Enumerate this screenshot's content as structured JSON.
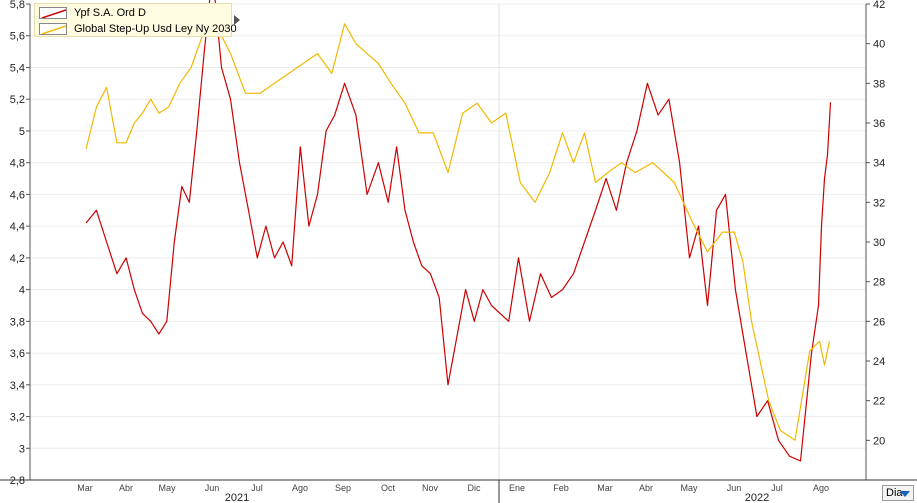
{
  "chart_data": {
    "type": "line",
    "x_ticks": [
      "Mar",
      "Abr",
      "May",
      "Jun",
      "Jul",
      "Ago",
      "Sep",
      "Oct",
      "Nov",
      "Dic",
      "Ene",
      "Feb",
      "Mar",
      "Abr",
      "May",
      "Jun",
      "Jul",
      "Ago"
    ],
    "year_labels": [
      "2021",
      "2022"
    ],
    "ylim_left": [
      2.8,
      5.8
    ],
    "yticks_left": [
      "2,8",
      "3",
      "3,2",
      "3,4",
      "3,6",
      "3,8",
      "4",
      "4,2",
      "4,4",
      "4,6",
      "4,8",
      "5",
      "5,2",
      "5,4",
      "5,6",
      "5,8"
    ],
    "ylim_right": [
      18,
      42
    ],
    "yticks_right": [
      "20",
      "22",
      "24",
      "26",
      "28",
      "30",
      "32",
      "34",
      "36",
      "38",
      "40",
      "42"
    ],
    "grid": true,
    "legend_position": "top-left",
    "series": [
      {
        "name": "Ypf S.A. Ord D",
        "axis": "left",
        "color": "#cc0000",
        "points": [
          [
            "Mar",
            4.42
          ],
          [
            "Mar",
            4.5
          ],
          [
            "Mar",
            4.3
          ],
          [
            "Mar",
            4.1
          ],
          [
            "Abr",
            4.2
          ],
          [
            "Abr",
            4.0
          ],
          [
            "Abr",
            3.85
          ],
          [
            "Abr",
            3.8
          ],
          [
            "Abr",
            3.72
          ],
          [
            "May",
            3.8
          ],
          [
            "May",
            4.3
          ],
          [
            "May",
            4.65
          ],
          [
            "May",
            4.55
          ],
          [
            "May",
            5.0
          ],
          [
            "May",
            5.5
          ],
          [
            "Jun",
            6.0
          ],
          [
            "Jun",
            5.4
          ],
          [
            "Jun",
            5.2
          ],
          [
            "Jun",
            4.8
          ],
          [
            "Jun",
            4.5
          ],
          [
            "Jul",
            4.2
          ],
          [
            "Jul",
            4.4
          ],
          [
            "Jul",
            4.2
          ],
          [
            "Jul",
            4.3
          ],
          [
            "Jul",
            4.15
          ],
          [
            "Ago",
            4.9
          ],
          [
            "Ago",
            4.4
          ],
          [
            "Ago",
            4.6
          ],
          [
            "Ago",
            5.0
          ],
          [
            "Ago",
            5.1
          ],
          [
            "Sep",
            5.3
          ],
          [
            "Sep",
            5.1
          ],
          [
            "Sep",
            4.6
          ],
          [
            "Sep",
            4.8
          ],
          [
            "Oct",
            4.55
          ],
          [
            "Oct",
            4.9
          ],
          [
            "Oct",
            4.5
          ],
          [
            "Oct",
            4.3
          ],
          [
            "Oct",
            4.15
          ],
          [
            "Nov",
            4.1
          ],
          [
            "Nov",
            3.95
          ],
          [
            "Nov",
            3.4
          ],
          [
            "Nov",
            3.7
          ],
          [
            "Nov",
            4.0
          ],
          [
            "Dic",
            3.8
          ],
          [
            "Dic",
            4.0
          ],
          [
            "Dic",
            3.9
          ],
          [
            "Dic",
            3.85
          ],
          [
            "Dic",
            3.8
          ],
          [
            "Ene",
            4.2
          ],
          [
            "Ene",
            3.8
          ],
          [
            "Ene",
            4.1
          ],
          [
            "Ene",
            3.95
          ],
          [
            "Feb",
            4.0
          ],
          [
            "Feb",
            4.1
          ],
          [
            "Feb",
            4.3
          ],
          [
            "Feb",
            4.5
          ],
          [
            "Mar",
            4.7
          ],
          [
            "Mar",
            4.5
          ],
          [
            "Mar",
            4.8
          ],
          [
            "Mar",
            5.0
          ],
          [
            "Abr",
            5.3
          ],
          [
            "Abr",
            5.1
          ],
          [
            "Abr",
            5.2
          ],
          [
            "Abr",
            4.8
          ],
          [
            "May",
            4.2
          ],
          [
            "May",
            4.4
          ],
          [
            "May",
            3.9
          ],
          [
            "May",
            4.5
          ],
          [
            "May",
            4.6
          ],
          [
            "Jun",
            4.0
          ],
          [
            "Jun",
            3.6
          ],
          [
            "Jun",
            3.2
          ],
          [
            "Jun",
            3.3
          ],
          [
            "Jul",
            3.05
          ],
          [
            "Jul",
            2.95
          ],
          [
            "Jul",
            2.92
          ],
          [
            "Jul",
            3.6
          ],
          [
            "Ago",
            3.9
          ],
          [
            "Ago",
            4.4
          ],
          [
            "Ago",
            4.7
          ],
          [
            "Ago",
            4.85
          ],
          [
            "Ago",
            5.18
          ]
        ]
      },
      {
        "name": "Global Step-Up Usd Ley Ny 2030",
        "axis": "right",
        "color": "#f2b800",
        "points": [
          [
            "Mar",
            34.7
          ],
          [
            "Mar",
            36.8
          ],
          [
            "Mar",
            37.8
          ],
          [
            "Mar",
            35.0
          ],
          [
            "Abr",
            35.0
          ],
          [
            "Abr",
            36.0
          ],
          [
            "Abr",
            36.5
          ],
          [
            "Abr",
            37.2
          ],
          [
            "Abr",
            36.5
          ],
          [
            "May",
            36.8
          ],
          [
            "May",
            38.0
          ],
          [
            "May",
            38.8
          ],
          [
            "May",
            40.4
          ],
          [
            "Jun",
            41.0
          ],
          [
            "Jun",
            39.5
          ],
          [
            "Jun",
            37.5
          ],
          [
            "Jul",
            37.5
          ],
          [
            "Jul",
            38.0
          ],
          [
            "Jul",
            38.5
          ],
          [
            "Ago",
            39.0
          ],
          [
            "Ago",
            39.5
          ],
          [
            "Ago",
            38.5
          ],
          [
            "Sep",
            41.0
          ],
          [
            "Sep",
            40.0
          ],
          [
            "Sep",
            39.5
          ],
          [
            "Sep",
            39.0
          ],
          [
            "Oct",
            38.0
          ],
          [
            "Oct",
            37.0
          ],
          [
            "Oct",
            35.5
          ],
          [
            "Nov",
            35.5
          ],
          [
            "Nov",
            33.5
          ],
          [
            "Nov",
            36.5
          ],
          [
            "Dic",
            37.0
          ],
          [
            "Dic",
            36.0
          ],
          [
            "Dic",
            36.5
          ],
          [
            "Ene",
            33.0
          ],
          [
            "Ene",
            32.0
          ],
          [
            "Ene",
            33.5
          ],
          [
            "Feb",
            35.5
          ],
          [
            "Feb",
            34.0
          ],
          [
            "Feb",
            35.5
          ],
          [
            "Feb",
            33.0
          ],
          [
            "Mar",
            33.5
          ],
          [
            "Mar",
            34.0
          ],
          [
            "Mar",
            33.5
          ],
          [
            "Abr",
            34.0
          ],
          [
            "Abr",
            33.0
          ],
          [
            "May",
            31.0
          ],
          [
            "May",
            29.5
          ],
          [
            "May",
            30.5
          ],
          [
            "Jun",
            30.5
          ],
          [
            "Jun",
            29.0
          ],
          [
            "Jun",
            26.0
          ],
          [
            "Jun",
            24.0
          ],
          [
            "Jun",
            22.0
          ],
          [
            "Jul",
            20.5
          ],
          [
            "Jul",
            20.0
          ],
          [
            "Jul",
            24.5
          ],
          [
            "Ago",
            25.0
          ],
          [
            "Ago",
            23.8
          ],
          [
            "Ago",
            25.0
          ]
        ]
      }
    ]
  },
  "legend": {
    "items": [
      {
        "label": "Ypf S.A. Ord D",
        "color": "#cc0000"
      },
      {
        "label": "Global Step-Up Usd Ley Ny 2030",
        "color": "#f2b800"
      }
    ]
  },
  "controls": {
    "period_label": "Dia"
  }
}
